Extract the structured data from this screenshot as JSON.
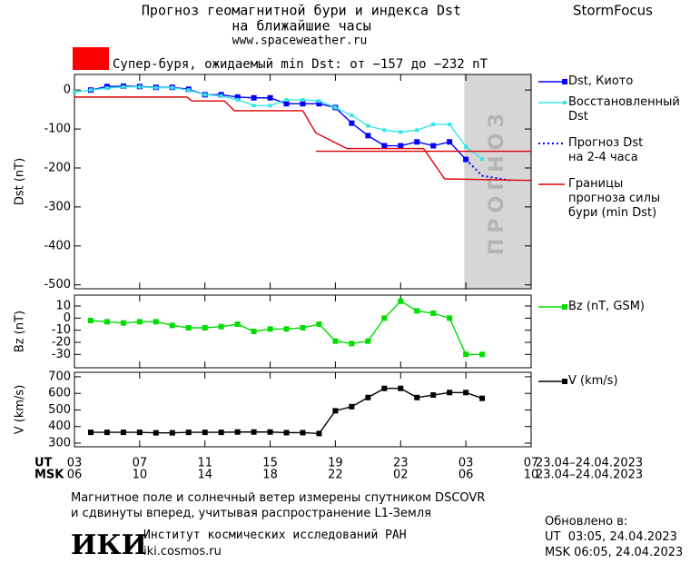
{
  "header": {
    "title": "Прогноз геомагнитной бури и индекса Dst",
    "subtitle": "на ближайшие часы",
    "url": "www.spaceweather.ru",
    "brand": "StormFocus"
  },
  "storm_label": "Супер-буря, ожидаемый min Dst: от −157 до −232 nT",
  "chart_data": [
    {
      "type": "line",
      "ylabel": "Dst (nT)",
      "xlim": [
        0,
        28
      ],
      "ylim": [
        -510,
        40
      ],
      "yticks": [
        0,
        -100,
        -200,
        -300,
        -400,
        -500
      ],
      "forecast_region": [
        23.9,
        28
      ],
      "forecast_text": "ПРОГНОЗ",
      "series": [
        {
          "name": "Dst, Киото",
          "color": "#0000ff",
          "marker": "square",
          "x": [
            1,
            2,
            3,
            4,
            5,
            6,
            7,
            8,
            9,
            10,
            11,
            12,
            13,
            14,
            15,
            16,
            17,
            18,
            19,
            20,
            21,
            22,
            23,
            24
          ],
          "values": [
            0,
            9,
            10,
            9,
            7,
            7,
            2,
            -12,
            -12,
            -18,
            -20,
            -20,
            -35,
            -35,
            -35,
            -45,
            -85,
            -117,
            -143,
            -143,
            -133,
            -143,
            -133,
            -178
          ]
        },
        {
          "name": "Восстановленный\nDst",
          "color": "#33e6e6",
          "marker": "small",
          "x": [
            0,
            1,
            2,
            3,
            4,
            5,
            6,
            7,
            8,
            9,
            10,
            11,
            12,
            13,
            14,
            15,
            16,
            17,
            18,
            19,
            20,
            21,
            22,
            23,
            24,
            25
          ],
          "values": [
            -5,
            0,
            5,
            8,
            8,
            6,
            6,
            0,
            -12,
            -15,
            -25,
            -40,
            -40,
            -25,
            -25,
            -28,
            -45,
            -65,
            -92,
            -103,
            -108,
            -103,
            -88,
            -88,
            -145,
            -177
          ]
        },
        {
          "name": "Прогноз Dst\nна 2-4 часа",
          "color": "#0000ff",
          "dash": "dotted",
          "x": [
            24,
            25,
            26.7
          ],
          "values": [
            -178,
            -220,
            -232
          ]
        },
        {
          "name": "Границы\nпрогноза силы\nбури (min Dst)",
          "color": "#dd0000",
          "x": [
            0,
            6.9,
            7.2,
            9.2,
            9.8,
            14,
            14.8,
            16.7,
            21.4,
            22.7,
            28,
            28,
            14.8,
            28
          ],
          "values": [
            -18,
            -18,
            -28,
            -28,
            -53,
            -53,
            -110,
            -150,
            -150,
            -228,
            -232,
            null,
            -157,
            -157
          ]
        }
      ]
    },
    {
      "type": "line",
      "ylabel": "Bz (nT)",
      "xlim": [
        0,
        28
      ],
      "ylim": [
        -41,
        19
      ],
      "yticks": [
        10,
        0,
        -10,
        -20,
        -30
      ],
      "series": [
        {
          "name": "Bz (nT, GSM)",
          "color": "#00dd00",
          "marker": "square",
          "x": [
            1,
            2,
            3,
            4,
            5,
            6,
            7,
            8,
            9,
            10,
            11,
            12,
            13,
            14,
            15,
            16,
            17,
            18,
            19,
            20,
            21,
            22,
            23,
            24,
            25
          ],
          "values": [
            -2,
            -3,
            -4,
            -3,
            -3,
            -6,
            -8,
            -8,
            -7,
            -5,
            -11,
            -9,
            -9,
            -8,
            -5,
            -19,
            -21,
            -19,
            0,
            14,
            6,
            4,
            0,
            -30,
            -30
          ]
        }
      ]
    },
    {
      "type": "line",
      "ylabel": "V (km/s)",
      "xlim": [
        0,
        28
      ],
      "ylim": [
        278,
        727
      ],
      "yticks": [
        700,
        600,
        500,
        400,
        300
      ],
      "xticks": [
        {
          "value": 0,
          "label": "03"
        },
        {
          "value": 4,
          "label": "07"
        },
        {
          "value": 8,
          "label": "11"
        },
        {
          "value": 12,
          "label": "15"
        },
        {
          "value": 16,
          "label": "19"
        },
        {
          "value": 20,
          "label": "23"
        },
        {
          "value": 24,
          "label": "03"
        },
        {
          "value": 28,
          "label": "07"
        }
      ],
      "msk_tick_labels": [
        "06",
        "10",
        "14",
        "18",
        "22",
        "02",
        "06",
        "10"
      ],
      "row_labels": [
        "UT",
        "MSK"
      ],
      "date_range": "23.04–24.04.2023",
      "series": [
        {
          "name": "V (km/s)",
          "color": "#000000",
          "marker": "square",
          "x": [
            1,
            2,
            3,
            4,
            5,
            6,
            7,
            8,
            9,
            10,
            11,
            12,
            13,
            14,
            15,
            16,
            17,
            18,
            19,
            20,
            21,
            22,
            23,
            24,
            25
          ],
          "values": [
            365,
            365,
            365,
            365,
            362,
            362,
            365,
            365,
            365,
            367,
            367,
            367,
            363,
            363,
            358,
            495,
            520,
            575,
            630,
            630,
            575,
            590,
            605,
            605,
            570
          ]
        }
      ]
    }
  ],
  "footer": {
    "note": "Магнитное поле и солнечный ветер измерены спутником DSCOVR\nи сдвинуты вперед, учитывая распространение L1-Земля",
    "logo": "ИКИ",
    "institute": "Институт космических исследований РАН",
    "site": "iki.cosmos.ru",
    "updated": "Обновлено в:",
    "updated_ut": "UT  03:05, 24.04.2023",
    "updated_msk": "MSK 06:05, 24.04.2023"
  }
}
